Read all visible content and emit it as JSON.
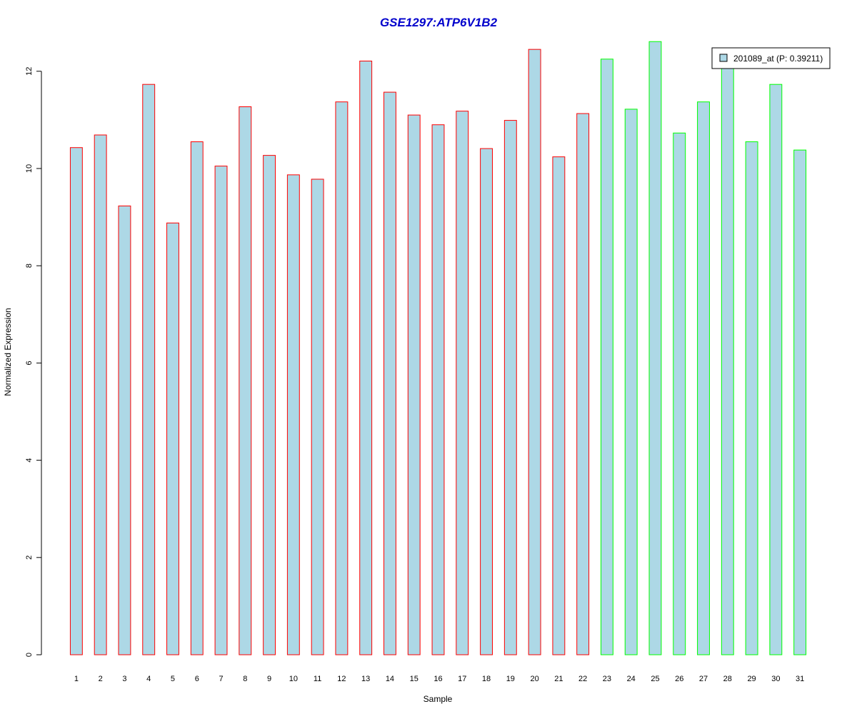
{
  "chart_data": {
    "type": "bar",
    "title": "GSE1297:ATP6V1B2",
    "xlabel": "Sample",
    "ylabel": "Normalized Expression",
    "ylim": [
      0,
      12.6
    ],
    "yticks": [
      0,
      2,
      4,
      6,
      8,
      10,
      12
    ],
    "categories": [
      "1",
      "2",
      "3",
      "4",
      "5",
      "6",
      "7",
      "8",
      "9",
      "10",
      "11",
      "12",
      "13",
      "14",
      "15",
      "16",
      "17",
      "18",
      "19",
      "20",
      "21",
      "22",
      "23",
      "24",
      "25",
      "26",
      "27",
      "28",
      "29",
      "30",
      "31"
    ],
    "series": [
      {
        "name": "201089_at (P: 0.39211)",
        "values": [
          10.43,
          10.69,
          9.23,
          11.73,
          8.88,
          10.55,
          10.05,
          11.27,
          10.27,
          9.87,
          9.78,
          11.37,
          12.21,
          11.57,
          11.1,
          10.9,
          11.18,
          10.41,
          10.99,
          12.45,
          10.24,
          11.13,
          12.25,
          11.22,
          12.61,
          10.73,
          11.37,
          12.13,
          10.55,
          11.73,
          10.38
        ]
      }
    ],
    "group_border_colors": [
      "#ff0000",
      "#ff0000",
      "#ff0000",
      "#ff0000",
      "#ff0000",
      "#ff0000",
      "#ff0000",
      "#ff0000",
      "#ff0000",
      "#ff0000",
      "#ff0000",
      "#ff0000",
      "#ff0000",
      "#ff0000",
      "#ff0000",
      "#ff0000",
      "#ff0000",
      "#ff0000",
      "#ff0000",
      "#ff0000",
      "#ff0000",
      "#ff0000",
      "#00ff00",
      "#00ff00",
      "#00ff00",
      "#00ff00",
      "#00ff00",
      "#00ff00",
      "#00ff00",
      "#00ff00",
      "#00ff00"
    ],
    "bar_fill": "#add8e6",
    "title_color": "#0000cc",
    "grid": false,
    "legend_position": "top-right"
  }
}
